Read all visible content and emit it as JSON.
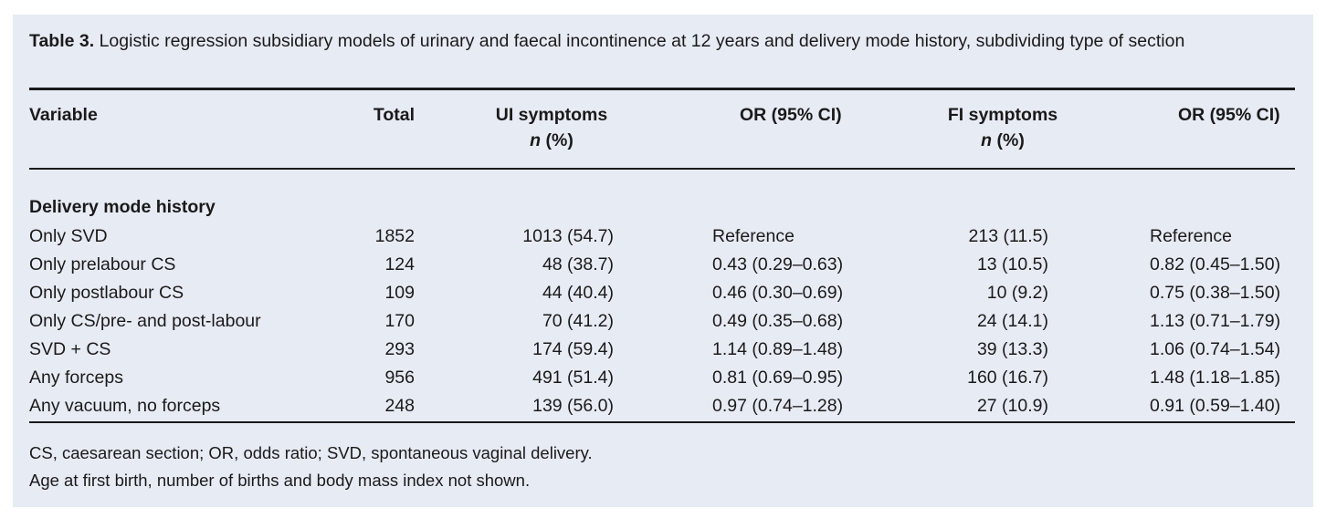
{
  "caption": {
    "label": "Table 3.",
    "text": " Logistic  regression subsidiary models of urinary and faecal incontinence at 12 years and delivery mode history, subdividing type of section"
  },
  "headers": {
    "variable": "Variable",
    "total": "Total",
    "ui": "UI symptoms",
    "ui_sub_n": "n",
    "ui_sub_pct": " (%)",
    "or1": "OR (95% CI)",
    "fi": "FI symptoms",
    "fi_sub_n": "n",
    "fi_sub_pct": " (%)",
    "or2": "OR (95% CI)"
  },
  "section": "Delivery mode history",
  "rows": [
    {
      "variable": "Only SVD",
      "total": "1852",
      "ui": "1013 (54.7)",
      "or1": "Reference",
      "fi": "213 (11.5)",
      "or2": "Reference"
    },
    {
      "variable": "Only prelabour CS",
      "total": "124",
      "ui": "48 (38.7)",
      "or1": "0.43 (0.29–0.63)",
      "fi": "13 (10.5)",
      "or2": "0.82 (0.45–1.50)"
    },
    {
      "variable": "Only postlabour CS",
      "total": "109",
      "ui": "44 (40.4)",
      "or1": "0.46 (0.30–0.69)",
      "fi": "10 (9.2)",
      "or2": "0.75 (0.38–1.50)"
    },
    {
      "variable": "Only CS/pre- and post-labour",
      "total": "170",
      "ui": "70 (41.2)",
      "or1": "0.49 (0.35–0.68)",
      "fi": "24 (14.1)",
      "or2": "1.13 (0.71–1.79)"
    },
    {
      "variable": "SVD + CS",
      "total": "293",
      "ui": "174 (59.4)",
      "or1": "1.14 (0.89–1.48)",
      "fi": "39 (13.3)",
      "or2": "1.06 (0.74–1.54)"
    },
    {
      "variable": "Any forceps",
      "total": "956",
      "ui": "491 (51.4)",
      "or1": "0.81 (0.69–0.95)",
      "fi": "160 (16.7)",
      "or2": "1.48 (1.18–1.85)"
    },
    {
      "variable": "Any vacuum, no forceps",
      "total": "248",
      "ui": "139 (56.0)",
      "or1": "0.97 (0.74–1.28)",
      "fi": "27 (10.9)",
      "or2": "0.91 (0.59–1.40)"
    }
  ],
  "footnotes": [
    "CS, caesarean section; OR, odds ratio; SVD, spontaneous vaginal delivery.",
    "Age at first birth, number of births and body mass index not shown."
  ]
}
